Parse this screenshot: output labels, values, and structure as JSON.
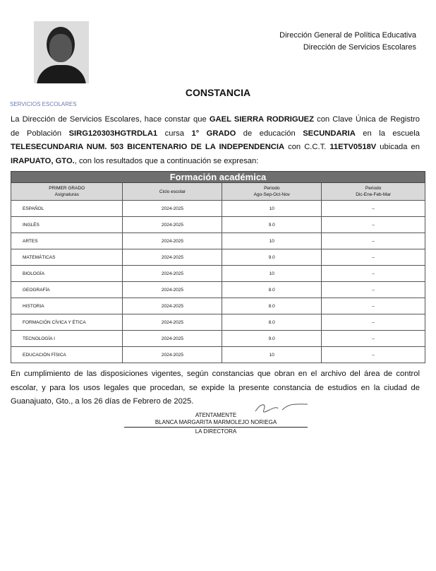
{
  "header": {
    "line1": "Dirección General de Política Educativa",
    "line2": "Dirección de Servicios Escolares"
  },
  "title": "CONSTANCIA",
  "stamp_text": "SERVICIOS ESCOLARES",
  "intro": {
    "p1": "La Dirección de Servicios Escolares, hace constar que ",
    "name": "GAEL SIERRA RODRIGUEZ",
    "p2": " con Clave Única de Registro de Población ",
    "curp": "SIRG120303HGTRDLA1",
    "p3": " cursa ",
    "grade": "1° GRADO",
    "p4": " de educación ",
    "level": "SECUNDARIA",
    "p5": " en la escuela ",
    "school": "TELESECUNDARIA NUM. 503 BICENTENARIO DE LA INDEPENDENCIA",
    "p6": " con C.C.T. ",
    "cct": "11ETV0518V",
    "p7": " ubicada en ",
    "city": "IRAPUATO, GTO.",
    "p8": ", con los resultados que a continuación se expresan:"
  },
  "table": {
    "title": "Formación académica",
    "headers": [
      [
        "PRIMER GRADO",
        "Asignaturas"
      ],
      [
        "Ciclo escolar",
        ""
      ],
      [
        "Periodo",
        "Ago-Sep-Oct-Nov"
      ],
      [
        "Periodo",
        "Dic-Ene-Feb-Mar"
      ]
    ],
    "rows": [
      [
        "ESPAÑOL",
        "2024-2025",
        "10",
        "–"
      ],
      [
        "INGLÉS",
        "2024-2025",
        "9.0",
        "–"
      ],
      [
        "ARTES",
        "2024-2025",
        "10",
        "–"
      ],
      [
        "MATEMÁTICAS",
        "2024-2025",
        "9.0",
        "–"
      ],
      [
        "BIOLOGÍA",
        "2024-2025",
        "10",
        "–"
      ],
      [
        "GEOGRAFÍA",
        "2024-2025",
        "8.0",
        "–"
      ],
      [
        "HISTORIA",
        "2024-2025",
        "8.0",
        "–"
      ],
      [
        "FORMACIÓN CÍVICA Y ÉTICA",
        "2024-2025",
        "8.0",
        "–"
      ],
      [
        "TECNOLOGÍA I",
        "2024-2025",
        "9.0",
        "–"
      ],
      [
        "EDUCACIÓN FÍSICA",
        "2024-2025",
        "10",
        "–"
      ]
    ]
  },
  "footer": "En cumplimiento de las disposiciones vigentes, según constancias que obran en el archivo del área de control escolar, y para los usos legales que procedan, se expide la presente constancia de estudios en la ciudad de Guanajuato, Gto., a los 26 días de Febrero de 2025.",
  "signature": {
    "closing": "ATENTAMENTE",
    "name": "BLANCA MARGARITA MARMOLEJO NORIEGA",
    "role": "LA DIRECTORA"
  }
}
